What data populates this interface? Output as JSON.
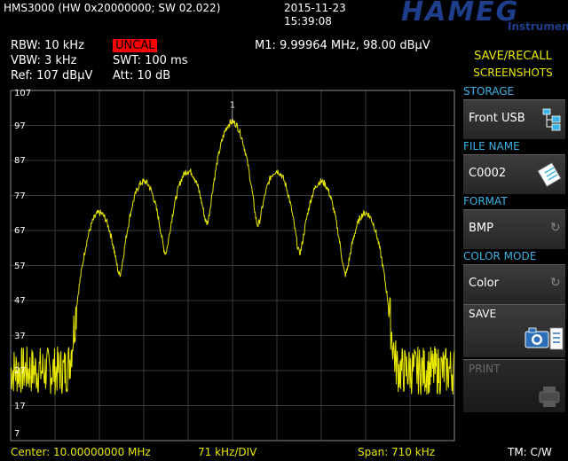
{
  "header": {
    "device": "HMS3000 (HW 0x20000000; SW 02.022)",
    "date": "2015-11-23",
    "time": "15:39:08",
    "logo": "HAMEG",
    "logo_sub": "Instruments"
  },
  "settings": {
    "rbw": "RBW: 10 kHz",
    "vbw": "VBW: 3 kHz",
    "ref": "Ref: 107 dBµV",
    "uncal": "UNCAL",
    "swt": "SWT: 100 ms",
    "att": "Att: 10 dB",
    "marker": "M1: 9.99964 MHz, 98.00 dBµV"
  },
  "panel": {
    "title_line1": "SAVE/RECALL",
    "title_line2": "SCREENSHOTS",
    "storage_label": "STORAGE",
    "storage_value": "Front USB",
    "filename_label": "FILE NAME",
    "filename_value": "C0002",
    "format_label": "FORMAT",
    "format_value": "BMP",
    "colormode_label": "COLOR MODE",
    "colormode_value": "Color",
    "save_label": "SAVE",
    "print_label": "PRINT"
  },
  "footer": {
    "center": "Center: 10.00000000 MHz",
    "div": "71 kHz/DIV",
    "span": "Span: 710 kHz",
    "tm": "TM: C/W"
  },
  "marker_label": "1",
  "colors": {
    "trace": "#e8e800",
    "grid": "#3a3a3a",
    "label_cyan": "#3ab4e6",
    "logo": "#1e3d8a",
    "uncal_bg": "#ff0000"
  },
  "chart_data": {
    "type": "line",
    "x_unit": "MHz",
    "y_unit": "dBµV",
    "y_ticks": [
      "107",
      "97",
      "87",
      "77",
      "67",
      "57",
      "47",
      "37",
      "27",
      "17",
      "7"
    ],
    "ylim": [
      7,
      107
    ],
    "xlim": [
      9.645,
      10.355
    ],
    "grid": true,
    "peaks": [
      {
        "x": 9.7873,
        "y": 72
      },
      {
        "x": 9.8583,
        "y": 81
      },
      {
        "x": 9.9293,
        "y": 84
      },
      {
        "x": 9.9996,
        "y": 98
      },
      {
        "x": 10.0707,
        "y": 84
      },
      {
        "x": 10.1417,
        "y": 81
      },
      {
        "x": 10.2127,
        "y": 72
      }
    ],
    "noise_floor_dbuv": 27,
    "marker": {
      "x": 9.99964,
      "y": 98.0
    }
  }
}
